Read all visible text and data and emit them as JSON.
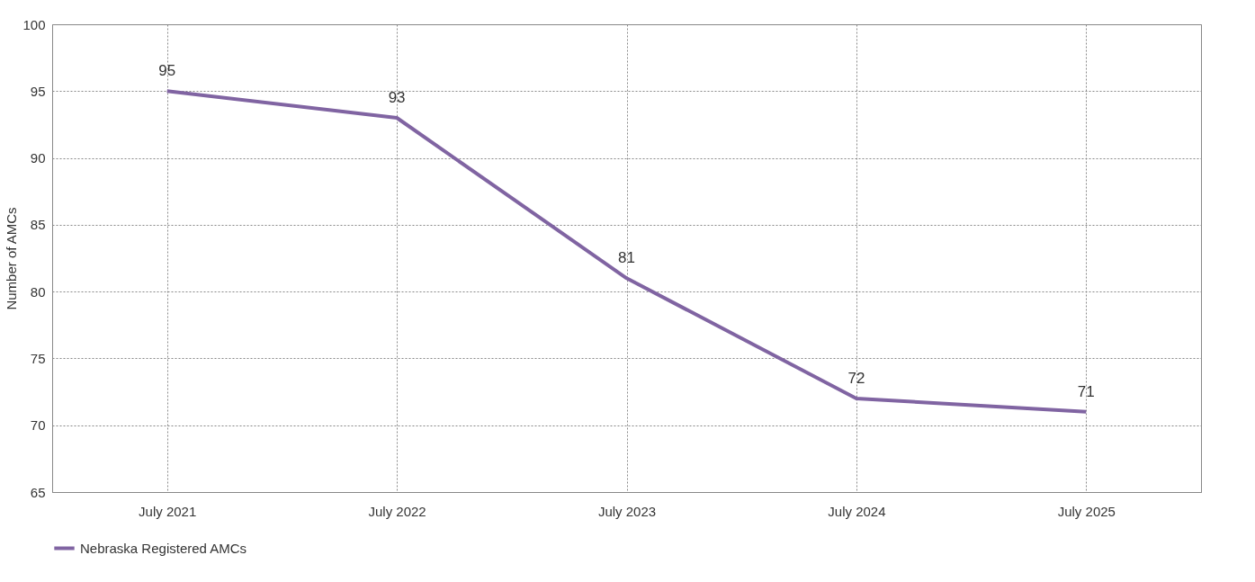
{
  "chart_data": {
    "type": "line",
    "ylabel": "Number of AMCs",
    "categories": [
      "July 2021",
      "July 2022",
      "July 2023",
      "July 2024",
      "July 2025"
    ],
    "series": [
      {
        "name": "Nebraska Registered AMCs",
        "color": "#8064a2",
        "values": [
          95,
          93,
          81,
          72,
          71
        ]
      }
    ],
    "ylim": [
      65,
      100
    ],
    "yticks": [
      65,
      70,
      75,
      80,
      85,
      90,
      95,
      100
    ],
    "grid": true,
    "legend": "bottom",
    "data_labels": true,
    "marker": "none",
    "line_style": "solid"
  }
}
